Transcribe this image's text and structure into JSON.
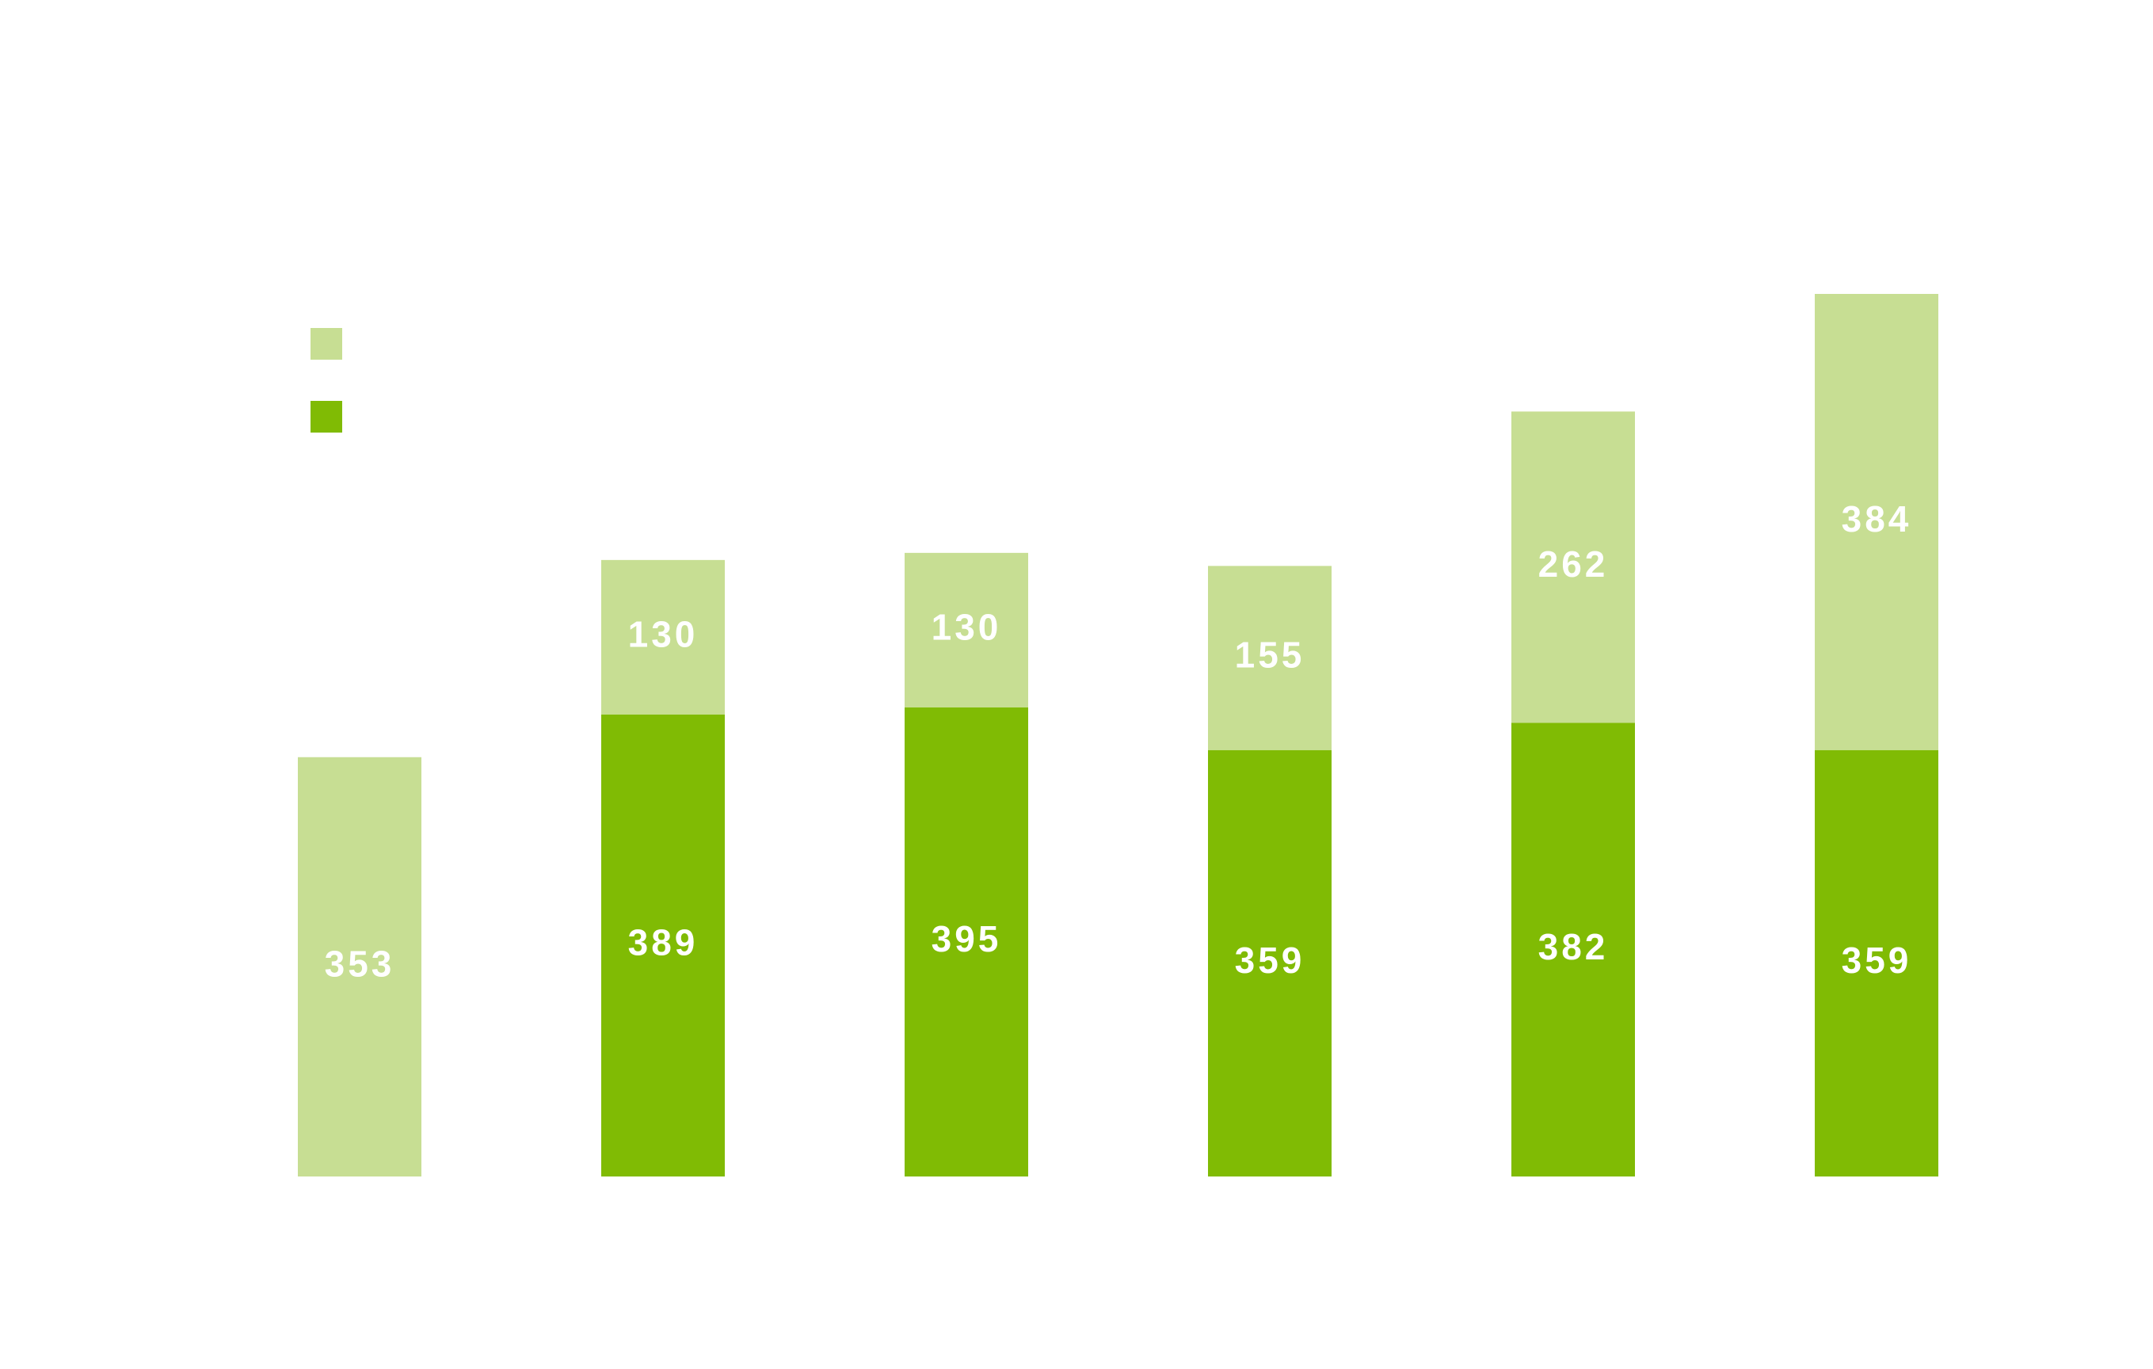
{
  "chart_data": {
    "type": "stacked-bar",
    "categories": [
      null,
      null,
      null,
      null,
      null,
      null
    ],
    "series": [
      {
        "color": "#80bb04",
        "values": [
          null,
          389,
          395,
          359,
          382,
          359
        ]
      },
      {
        "color": "#c7de93",
        "values": [
          353,
          130,
          130,
          155,
          262,
          384
        ]
      }
    ]
  }
}
